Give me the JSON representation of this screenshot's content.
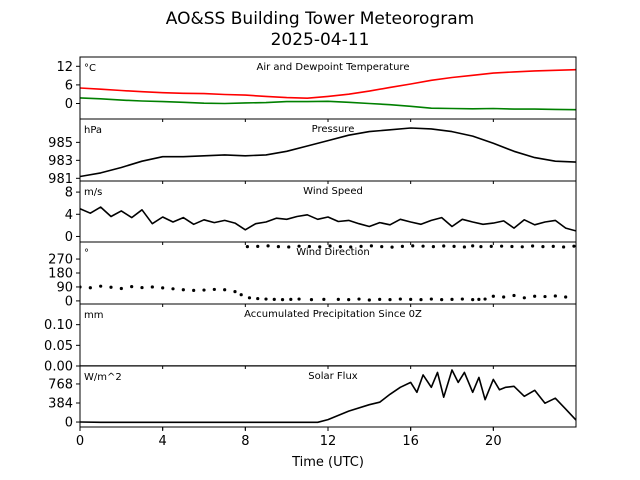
{
  "figure": {
    "title": "AO&SS Building Tower Meteorogram",
    "subtitle": "2025-04-11",
    "xlabel": "Time (UTC)",
    "xticks": [
      0,
      4,
      8,
      12,
      16,
      20
    ],
    "xlim": [
      0,
      24
    ]
  },
  "chart_data": [
    {
      "type": "line",
      "title": "Air and Dewpoint Temperature",
      "unit": "°C",
      "ylim": [
        -5,
        15
      ],
      "yticks": [
        0,
        6,
        12
      ],
      "series": [
        {
          "color": "#ff0000",
          "x": [
            0,
            1,
            2,
            3,
            4,
            5,
            6,
            7,
            8,
            9,
            10,
            11,
            12,
            13,
            14,
            15,
            16,
            17,
            18,
            19,
            20,
            21,
            22,
            23,
            24
          ],
          "y": [
            5,
            4.6,
            4.2,
            3.8,
            3.5,
            3.3,
            3.2,
            2.9,
            2.7,
            2.3,
            1.9,
            1.7,
            2.3,
            3,
            4,
            5.2,
            6.3,
            7.5,
            8.4,
            9.1,
            9.8,
            10.2,
            10.5,
            10.7,
            10.9
          ]
        },
        {
          "color": "#008000",
          "x": [
            0,
            1,
            2,
            3,
            4,
            5,
            6,
            7,
            8,
            9,
            10,
            11,
            12,
            13,
            14,
            15,
            16,
            17,
            18,
            19,
            20,
            21,
            22,
            23,
            24
          ],
          "y": [
            1.8,
            1.5,
            1.1,
            0.8,
            0.6,
            0.4,
            0.1,
            0,
            0.2,
            0.3,
            0.6,
            0.6,
            0.7,
            0.4,
            0,
            -0.4,
            -0.9,
            -1.5,
            -1.6,
            -1.7,
            -1.6,
            -1.8,
            -1.8,
            -1.9,
            -2
          ]
        }
      ]
    },
    {
      "type": "line",
      "title": "Pressure",
      "unit": "hPa",
      "ylim": [
        980.7,
        987.6
      ],
      "yticks": [
        981,
        983,
        985
      ],
      "series": [
        {
          "color": "#000000",
          "x": [
            0,
            1,
            2,
            3,
            4,
            5,
            6,
            7,
            8,
            9,
            10,
            11,
            12,
            13,
            14,
            15,
            16,
            17,
            18,
            19,
            20,
            21,
            22,
            23,
            24
          ],
          "y": [
            981.2,
            981.6,
            982.2,
            982.9,
            983.4,
            983.4,
            983.5,
            983.6,
            983.5,
            983.6,
            984.0,
            984.6,
            985.2,
            985.8,
            986.2,
            986.4,
            986.6,
            986.5,
            986.2,
            985.7,
            984.9,
            984.0,
            983.3,
            982.9,
            982.8
          ]
        }
      ]
    },
    {
      "type": "line",
      "title": "Wind Speed",
      "unit": "m/s",
      "ylim": [
        -1,
        10
      ],
      "yticks": [
        0,
        4,
        8
      ],
      "series": [
        {
          "color": "#000000",
          "x": [
            0,
            0.5,
            1,
            1.5,
            2,
            2.5,
            3,
            3.5,
            4,
            4.5,
            5,
            5.5,
            6,
            6.5,
            7,
            7.5,
            8,
            8.5,
            9,
            9.5,
            10,
            10.5,
            11,
            11.5,
            12,
            12.5,
            13,
            13.5,
            14,
            14.5,
            15,
            15.5,
            16,
            16.5,
            17,
            17.5,
            18,
            18.5,
            19,
            19.5,
            20,
            20.5,
            21,
            21.5,
            22,
            22.5,
            23,
            23.5,
            24
          ],
          "y": [
            5,
            4.2,
            5.3,
            3.6,
            4.6,
            3.4,
            4.8,
            2.3,
            3.5,
            2.6,
            3.4,
            2.2,
            3,
            2.5,
            2.9,
            2.4,
            1.2,
            2.3,
            2.6,
            3.3,
            3.1,
            3.6,
            3.9,
            3.1,
            3.5,
            2.7,
            2.9,
            2.3,
            1.8,
            2.5,
            2.1,
            3.1,
            2.6,
            2.2,
            2.9,
            3.4,
            1.8,
            3.1,
            2.6,
            2.2,
            2.4,
            2.8,
            1.5,
            3,
            2.1,
            2.6,
            2.9,
            1.5,
            1
          ]
        }
      ]
    },
    {
      "type": "scatter",
      "title": "Wind Direction",
      "unit": "°",
      "ylim": [
        -20,
        380
      ],
      "yticks": [
        0,
        90,
        180,
        270
      ],
      "series": [
        {
          "color": "#000000",
          "x": [
            0,
            0.5,
            1,
            1.5,
            2,
            2.5,
            3,
            3.5,
            4,
            4.5,
            5,
            5.5,
            6,
            6.5,
            7,
            7.5,
            7.8,
            8.2,
            8.6,
            9,
            9.4,
            9.8,
            10.2,
            10.6,
            11.2,
            11.8,
            12.5,
            13,
            13.5,
            14,
            14.5,
            15,
            15.5,
            16,
            16.5,
            17,
            17.5,
            18,
            18.5,
            19,
            19.3,
            19.6,
            20,
            20.5,
            21,
            21.5,
            22,
            22.5,
            23,
            23.5
          ],
          "y": [
            90,
            85,
            95,
            88,
            80,
            92,
            86,
            90,
            84,
            78,
            72,
            68,
            70,
            74,
            72,
            60,
            40,
            20,
            15,
            12,
            10,
            8,
            10,
            12,
            8,
            10,
            10,
            8,
            12,
            6,
            10,
            8,
            12,
            10,
            8,
            12,
            8,
            10,
            12,
            8,
            10,
            12,
            30,
            25,
            35,
            20,
            30,
            28,
            32,
            25
          ]
        },
        {
          "color": "#000000",
          "x": [
            8.1,
            8.6,
            9.1,
            9.6,
            10.1,
            10.6,
            11.1,
            11.6,
            12.1,
            12.6,
            13.1,
            13.6,
            14.1,
            14.6,
            15.1,
            15.6,
            16.1,
            16.6,
            17.1,
            17.6,
            18.1,
            18.6,
            19,
            19.4,
            19.9,
            20.4,
            20.9,
            21.4,
            21.9,
            22.4,
            22.9,
            23.4,
            23.9
          ],
          "y": [
            350,
            352,
            355,
            350,
            348,
            353,
            351,
            349,
            354,
            350,
            348,
            352,
            355,
            350,
            347,
            352,
            355,
            353,
            350,
            354,
            352,
            348,
            355,
            350,
            352,
            353,
            351,
            349,
            354,
            350,
            352,
            348,
            353
          ]
        }
      ]
    },
    {
      "type": "line",
      "title": "Accumulated Precipitation Since 0Z",
      "unit": "mm",
      "ylim": [
        0,
        0.15
      ],
      "yticks": [
        0.0,
        0.05,
        0.1
      ],
      "ytick_labels": [
        "0.00",
        "0.05",
        "0.10"
      ],
      "series": [
        {
          "color": "#000000",
          "x": [
            0,
            24
          ],
          "y": [
            0,
            0
          ]
        }
      ]
    },
    {
      "type": "line",
      "title": "Solar Flux",
      "unit": "W/m^2",
      "ylim": [
        -100,
        1130
      ],
      "yticks": [
        0,
        384,
        768
      ],
      "series": [
        {
          "color": "#000000",
          "x": [
            0,
            1,
            2,
            4,
            6,
            8,
            10,
            11.5,
            12,
            13,
            14,
            14.5,
            15,
            15.5,
            16,
            16.3,
            16.6,
            17,
            17.3,
            17.6,
            18,
            18.3,
            18.6,
            19,
            19.3,
            19.6,
            20,
            20.3,
            20.6,
            21,
            21.5,
            22,
            22.5,
            23,
            23.5,
            24
          ],
          "y": [
            0,
            -5,
            -5,
            -5,
            -5,
            -5,
            -5,
            -5,
            50,
            220,
            350,
            400,
            560,
            700,
            800,
            600,
            950,
            700,
            1000,
            500,
            1050,
            800,
            1000,
            600,
            900,
            450,
            860,
            650,
            700,
            720,
            520,
            640,
            380,
            480,
            260,
            40
          ]
        }
      ]
    }
  ]
}
